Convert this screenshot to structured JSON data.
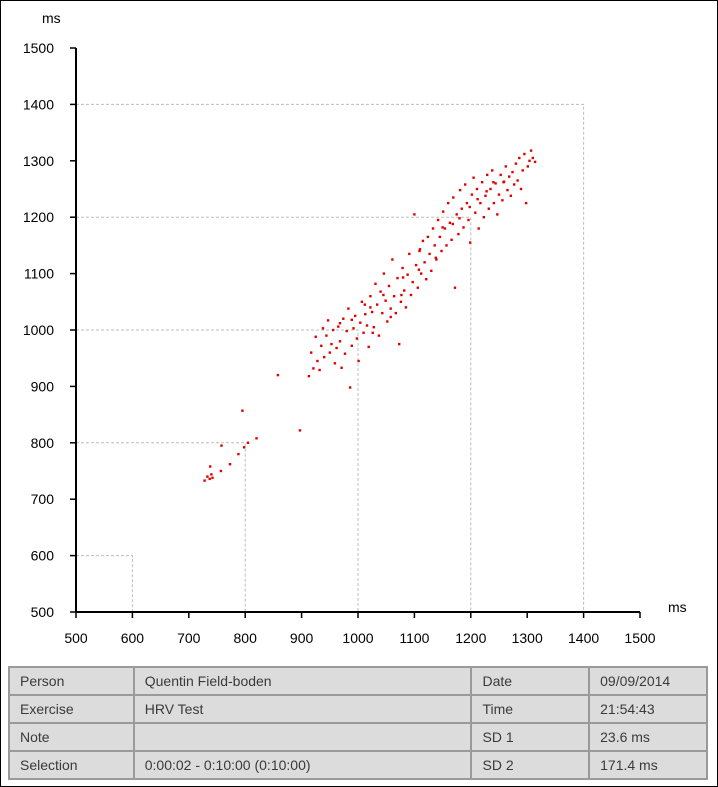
{
  "chart_data": {
    "type": "scatter",
    "xlabel": "ms",
    "ylabel": "ms",
    "xlim": [
      500,
      1500
    ],
    "ylim": [
      500,
      1500
    ],
    "xticks": [
      500,
      600,
      700,
      800,
      900,
      1000,
      1100,
      1200,
      1300,
      1400,
      1500
    ],
    "yticks": [
      500,
      600,
      700,
      800,
      900,
      1000,
      1100,
      1200,
      1300,
      1400,
      1500
    ],
    "guide_boxes": [
      600,
      800,
      1000,
      1200,
      1400
    ],
    "point_color": "#e00000",
    "series": [
      {
        "points": [
          [
            728,
            733
          ],
          [
            733,
            740
          ],
          [
            737,
            736
          ],
          [
            740,
            744
          ],
          [
            742,
            738
          ],
          [
            738,
            758
          ],
          [
            757,
            750
          ],
          [
            758,
            795
          ],
          [
            773,
            762
          ],
          [
            788,
            780
          ],
          [
            795,
            857
          ],
          [
            798,
            792
          ],
          [
            805,
            800
          ],
          [
            820,
            808
          ],
          [
            858,
            920
          ],
          [
            897,
            822
          ],
          [
            913,
            918
          ],
          [
            917,
            960
          ],
          [
            921,
            932
          ],
          [
            925,
            988
          ],
          [
            928,
            945
          ],
          [
            932,
            929
          ],
          [
            935,
            972
          ],
          [
            938,
            1003
          ],
          [
            940,
            952
          ],
          [
            944,
            990
          ],
          [
            947,
            1017
          ],
          [
            950,
            960
          ],
          [
            953,
            975
          ],
          [
            956,
            1000
          ],
          [
            959,
            941
          ],
          [
            962,
            968
          ],
          [
            965,
            1006
          ],
          [
            968,
            980
          ],
          [
            971,
            933
          ],
          [
            974,
            1020
          ],
          [
            977,
            958
          ],
          [
            980,
            998
          ],
          [
            983,
            1038
          ],
          [
            986,
            898
          ],
          [
            989,
            972
          ],
          [
            992,
            1003
          ],
          [
            995,
            1025
          ],
          [
            998,
            985
          ],
          [
            1001,
            945
          ],
          [
            1004,
            1013
          ],
          [
            1007,
            1050
          ],
          [
            1010,
            995
          ],
          [
            1013,
            1028
          ],
          [
            1016,
            1008
          ],
          [
            1019,
            970
          ],
          [
            1022,
            1060
          ],
          [
            1025,
            1032
          ],
          [
            1028,
            1005
          ],
          [
            1031,
            1082
          ],
          [
            1034,
            1045
          ],
          [
            1037,
            990
          ],
          [
            1040,
            1068
          ],
          [
            1043,
            1030
          ],
          [
            1046,
            1100
          ],
          [
            1049,
            1052
          ],
          [
            1052,
            1015
          ],
          [
            1055,
            1078
          ],
          [
            1058,
            1038
          ],
          [
            1061,
            1125
          ],
          [
            1064,
            1060
          ],
          [
            1067,
            1030
          ],
          [
            1070,
            1092
          ],
          [
            1073,
            975
          ],
          [
            1076,
            1050
          ],
          [
            1079,
            1110
          ],
          [
            1082,
            1070
          ],
          [
            1085,
            1040
          ],
          [
            1088,
            1098
          ],
          [
            1091,
            1135
          ],
          [
            1094,
            1062
          ],
          [
            1097,
            1085
          ],
          [
            1100,
            1205
          ],
          [
            1103,
            1115
          ],
          [
            1106,
            1075
          ],
          [
            1109,
            1140
          ],
          [
            1112,
            1100
          ],
          [
            1115,
            1158
          ],
          [
            1118,
            1120
          ],
          [
            1121,
            1090
          ],
          [
            1124,
            1165
          ],
          [
            1127,
            1135
          ],
          [
            1130,
            1105
          ],
          [
            1133,
            1180
          ],
          [
            1136,
            1150
          ],
          [
            1139,
            1125
          ],
          [
            1142,
            1195
          ],
          [
            1145,
            1165
          ],
          [
            1148,
            1140
          ],
          [
            1151,
            1210
          ],
          [
            1154,
            1180
          ],
          [
            1157,
            1150
          ],
          [
            1160,
            1225
          ],
          [
            1163,
            1190
          ],
          [
            1166,
            1160
          ],
          [
            1169,
            1235
          ],
          [
            1172,
            1075
          ],
          [
            1175,
            1205
          ],
          [
            1178,
            1170
          ],
          [
            1181,
            1248
          ],
          [
            1184,
            1215
          ],
          [
            1187,
            1182
          ],
          [
            1190,
            1258
          ],
          [
            1193,
            1225
          ],
          [
            1196,
            1195
          ],
          [
            1199,
            1155
          ],
          [
            1202,
            1240
          ],
          [
            1205,
            1270
          ],
          [
            1208,
            1208
          ],
          [
            1211,
            1250
          ],
          [
            1214,
            1180
          ],
          [
            1217,
            1225
          ],
          [
            1220,
            1262
          ],
          [
            1223,
            1200
          ],
          [
            1226,
            1238
          ],
          [
            1229,
            1275
          ],
          [
            1232,
            1215
          ],
          [
            1235,
            1250
          ],
          [
            1238,
            1283
          ],
          [
            1241,
            1225
          ],
          [
            1244,
            1260
          ],
          [
            1247,
            1205
          ],
          [
            1250,
            1240
          ],
          [
            1253,
            1275
          ],
          [
            1256,
            1230
          ],
          [
            1259,
            1263
          ],
          [
            1262,
            1290
          ],
          [
            1265,
            1248
          ],
          [
            1268,
            1272
          ],
          [
            1271,
            1238
          ],
          [
            1274,
            1280
          ],
          [
            1277,
            1258
          ],
          [
            1280,
            1295
          ],
          [
            1283,
            1265
          ],
          [
            1286,
            1305
          ],
          [
            1289,
            1250
          ],
          [
            1292,
            1283
          ],
          [
            1295,
            1312
          ],
          [
            1298,
            1225
          ],
          [
            1301,
            1290
          ],
          [
            1304,
            1300
          ],
          [
            1307,
            1318
          ],
          [
            1310,
            1305
          ],
          [
            1314,
            1298
          ],
          [
            1012,
            1045
          ],
          [
            1026,
            995
          ],
          [
            1058,
            1023
          ],
          [
            1077,
            1062
          ],
          [
            1108,
            1107
          ],
          [
            1138,
            1128
          ],
          [
            1168,
            1188
          ],
          [
            1198,
            1218
          ],
          [
            1228,
            1246
          ],
          [
            1258,
            1262
          ],
          [
            968,
            1012
          ],
          [
            989,
            1018
          ],
          [
            1022,
            1040
          ],
          [
            1045,
            1062
          ],
          [
            1080,
            1093
          ],
          [
            1110,
            1143
          ],
          [
            1150,
            1182
          ],
          [
            1180,
            1198
          ],
          [
            1212,
            1232
          ],
          [
            1240,
            1262
          ]
        ]
      }
    ]
  },
  "info_table": {
    "rows": [
      [
        "Person",
        "Quentin Field-boden",
        "Date",
        "09/09/2014"
      ],
      [
        "Exercise",
        "HRV Test",
        "Time",
        "21:54:43"
      ],
      [
        "Note",
        "",
        "SD 1",
        "23.6 ms"
      ],
      [
        "Selection",
        "0:00:02 - 0:10:00 (0:10:00)",
        "SD 2",
        "171.4 ms"
      ]
    ]
  }
}
